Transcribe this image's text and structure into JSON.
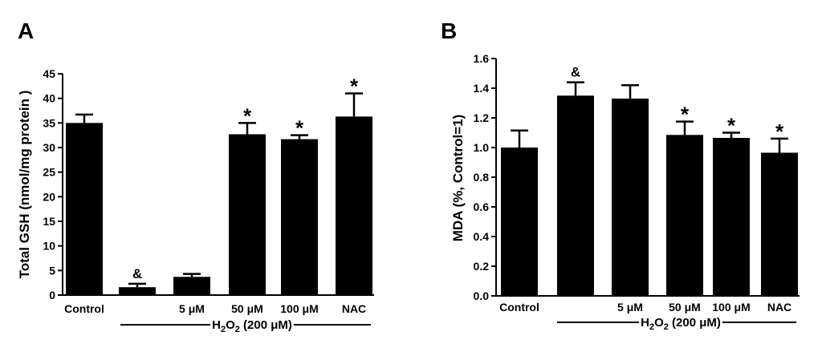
{
  "chart_data": [
    {
      "type": "bar",
      "panel_label": "A",
      "title": "",
      "xlabel": "",
      "ylabel": "Total GSH (nmol/mg protein )",
      "ylim": [
        0,
        45
      ],
      "yticks": [
        "0",
        "5",
        "10",
        "15",
        "20",
        "25",
        "30",
        "35",
        "40",
        "45"
      ],
      "categories": [
        "Control",
        "",
        "5 μM",
        "50 μM",
        "100 μM",
        "NAC"
      ],
      "values": [
        35.0,
        1.6,
        3.7,
        32.7,
        31.7,
        36.3
      ],
      "errors": [
        1.7,
        0.7,
        0.6,
        2.3,
        0.8,
        4.7
      ],
      "markers": [
        "",
        "&",
        "",
        "*",
        "*",
        "*"
      ],
      "group_label": "H2O2 (200 μM)",
      "group_label_parts": {
        "pre": "H",
        "sub": "2",
        "mid": "O",
        "sub2": "2",
        "post": " (200 μM)"
      },
      "group_start_index": 1,
      "bar_color": "#000000",
      "grid": false
    },
    {
      "type": "bar",
      "panel_label": "B",
      "title": "",
      "xlabel": "",
      "ylabel": "MDA (%, Control=1)",
      "ylim": [
        0,
        1.6
      ],
      "yticks": [
        "0.0",
        "0.2",
        "0.4",
        "0.6",
        "0.8",
        "1.0",
        "1.2",
        "1.4",
        "1.6"
      ],
      "categories": [
        "Control",
        "",
        "5 μM",
        "50 μM",
        "100 μM",
        "NAC"
      ],
      "values": [
        1.0,
        1.35,
        1.33,
        1.085,
        1.065,
        0.965
      ],
      "errors": [
        0.115,
        0.09,
        0.09,
        0.09,
        0.035,
        0.095
      ],
      "markers": [
        "",
        "&",
        "",
        "*",
        "*",
        "*"
      ],
      "group_label": "H2O2 (200 μM)",
      "group_label_parts": {
        "pre": "H",
        "sub": "2",
        "mid": "O",
        "sub2": "2",
        "post": " (200 μM)"
      },
      "group_start_index": 1,
      "bar_color": "#000000",
      "grid": false
    }
  ]
}
